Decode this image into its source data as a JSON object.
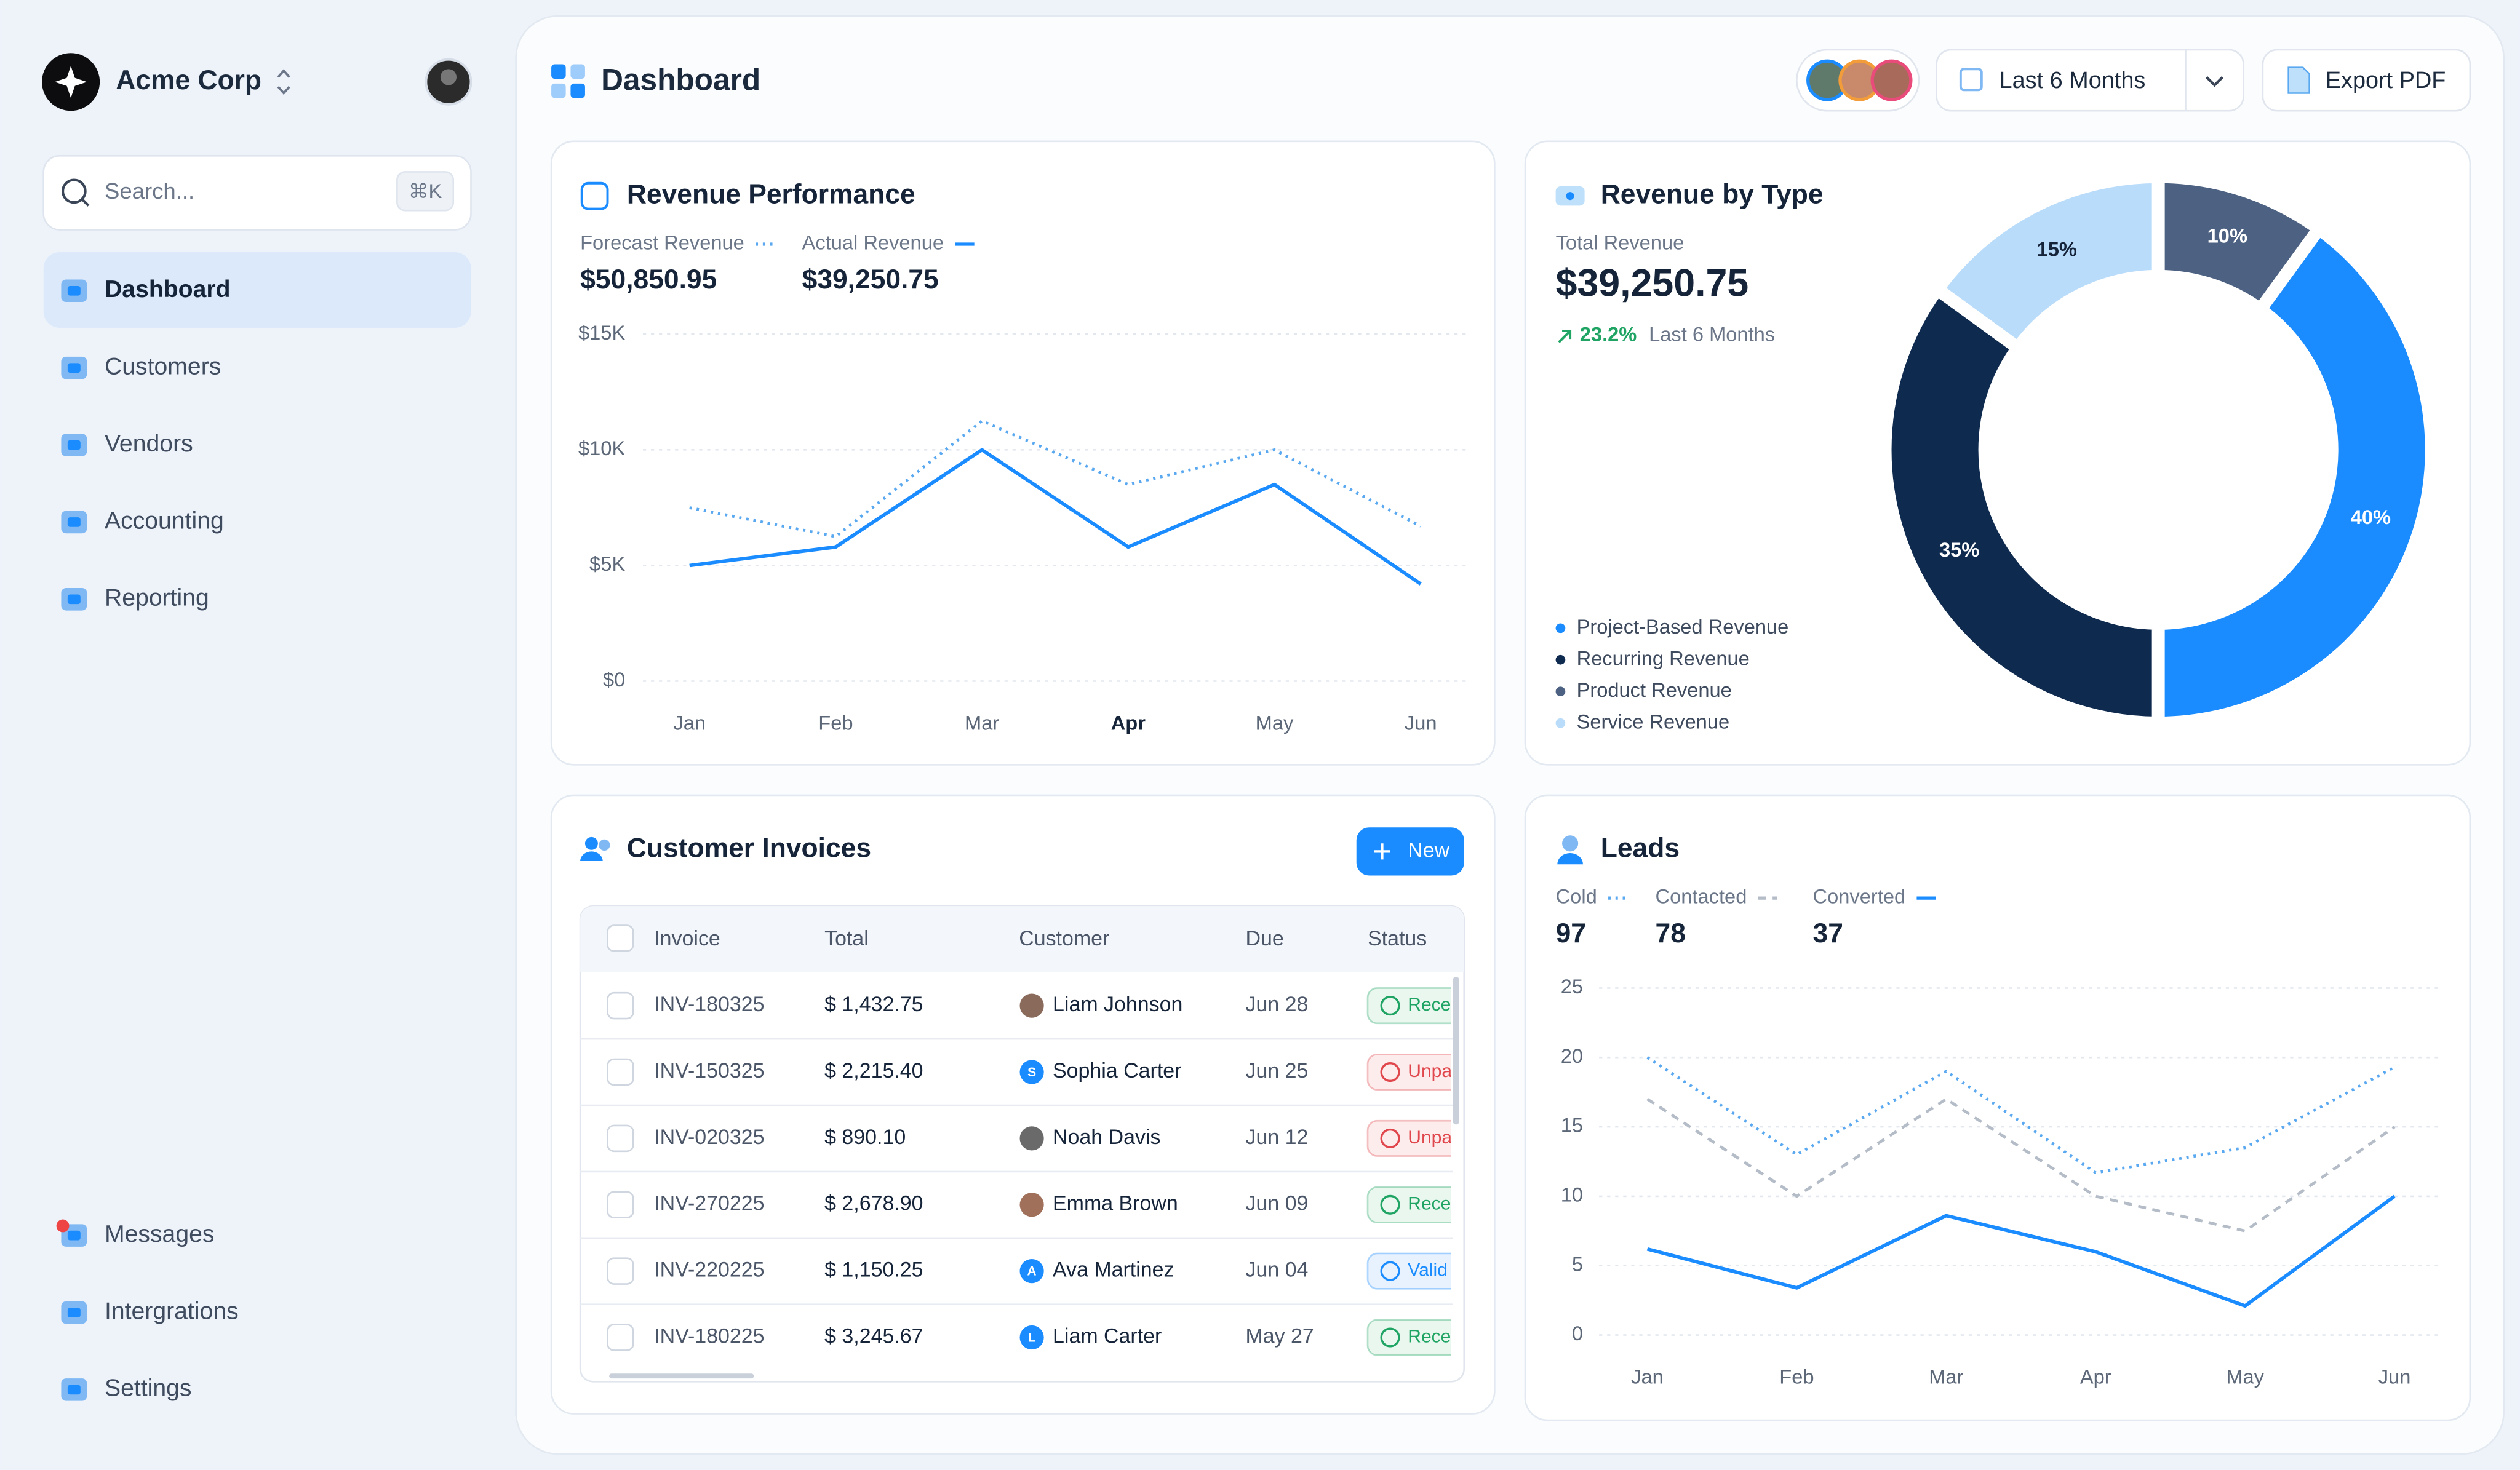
{
  "sidebar": {
    "brand": "Acme Corp",
    "search_placeholder": "Search...",
    "shortcut": "⌘K",
    "nav": [
      "Dashboard",
      "Customers",
      "Vendors",
      "Accounting",
      "Reporting"
    ],
    "bottom_nav": [
      "Messages",
      "Intergrations",
      "Settings"
    ]
  },
  "header": {
    "title": "Dashboard",
    "period": "Last 6 Months",
    "export": "Export PDF"
  },
  "chart_data": [
    {
      "type": "line",
      "title": "Revenue Performance",
      "categories": [
        "Jan",
        "Feb",
        "Mar",
        "Apr",
        "May",
        "Jun"
      ],
      "series": [
        {
          "name": "Forecast Revenue",
          "color": "#5aa9f0",
          "style": "dotted",
          "total": "$50,850.95",
          "values": [
            7500,
            6250,
            11250,
            8500,
            10000,
            6700
          ]
        },
        {
          "name": "Actual Revenue",
          "color": "#1a8cff",
          "style": "solid",
          "total": "$39,250.75",
          "values": [
            5000,
            5800,
            10000,
            5800,
            8500,
            4200
          ]
        }
      ],
      "ylim": [
        0,
        15000
      ],
      "yticks": [
        {
          "value": 0,
          "label": "$0"
        },
        {
          "value": 5000,
          "label": "$5K"
        },
        {
          "value": 10000,
          "label": "$10K"
        },
        {
          "value": 15000,
          "label": "$15K"
        }
      ],
      "grid": true
    },
    {
      "type": "pie",
      "title": "Revenue by Type",
      "subtitle": "Total Revenue",
      "total": "$39,250.75",
      "change": "23.2%",
      "change_period": "Last 6 Months",
      "categories": [
        "Project-Based Revenue",
        "Recurring Revenue",
        "Product Revenue",
        "Service Revenue"
      ],
      "values": [
        40,
        35,
        10,
        15
      ],
      "value_labels": [
        "40%",
        "35%",
        "10%",
        "15%"
      ],
      "colors": [
        "#1a8cff",
        "#0f2a4f",
        "#4d6282",
        "#b9dcfb"
      ]
    },
    {
      "type": "line",
      "title": "Leads",
      "categories": [
        "Jan",
        "Feb",
        "Mar",
        "Apr",
        "May",
        "Jun"
      ],
      "series": [
        {
          "name": "Cold",
          "color": "#5aa9f0",
          "style": "dotted",
          "total": 97,
          "values": [
            20,
            13,
            19,
            11.7,
            13.5,
            19.3
          ]
        },
        {
          "name": "Contacted",
          "color": "#b4bcc8",
          "style": "dashed",
          "total": 78,
          "values": [
            17,
            10,
            17,
            10,
            7.5,
            15
          ]
        },
        {
          "name": "Converted",
          "color": "#1a8cff",
          "style": "solid",
          "total": 37,
          "values": [
            6.2,
            3.4,
            8.6,
            6,
            2.1,
            10
          ]
        }
      ],
      "ylim": [
        0,
        25
      ],
      "yticks": [
        0,
        5,
        10,
        15,
        20,
        25
      ],
      "grid": true
    }
  ],
  "invoices": {
    "title": "Customer Invoices",
    "new_button": "New",
    "columns": [
      "Invoice",
      "Total",
      "Customer",
      "Due",
      "Status"
    ],
    "rows": [
      {
        "invoice": "INV-180325",
        "total": "$ 1,432.75",
        "customer": "Liam Johnson",
        "due": "Jun 28",
        "status": "Received"
      },
      {
        "invoice": "INV-150325",
        "total": "$ 2,215.40",
        "customer": "Sophia Carter",
        "avatar": "S",
        "due": "Jun 25",
        "status": "Unpaid"
      },
      {
        "invoice": "INV-020325",
        "total": "$ 890.10",
        "customer": "Noah Davis",
        "due": "Jun 12",
        "status": "Unpaid"
      },
      {
        "invoice": "INV-270225",
        "total": "$ 2,678.90",
        "customer": "Emma Brown",
        "due": "Jun 09",
        "status": "Received"
      },
      {
        "invoice": "INV-220225",
        "total": "$ 1,150.25",
        "customer": "Ava Martinez",
        "avatar": "A",
        "due": "Jun 04",
        "status": "Valid"
      },
      {
        "invoice": "INV-180225",
        "total": "$ 3,245.67",
        "customer": "Liam Carter",
        "avatar": "L",
        "due": "May 27",
        "status": "Received"
      }
    ]
  }
}
